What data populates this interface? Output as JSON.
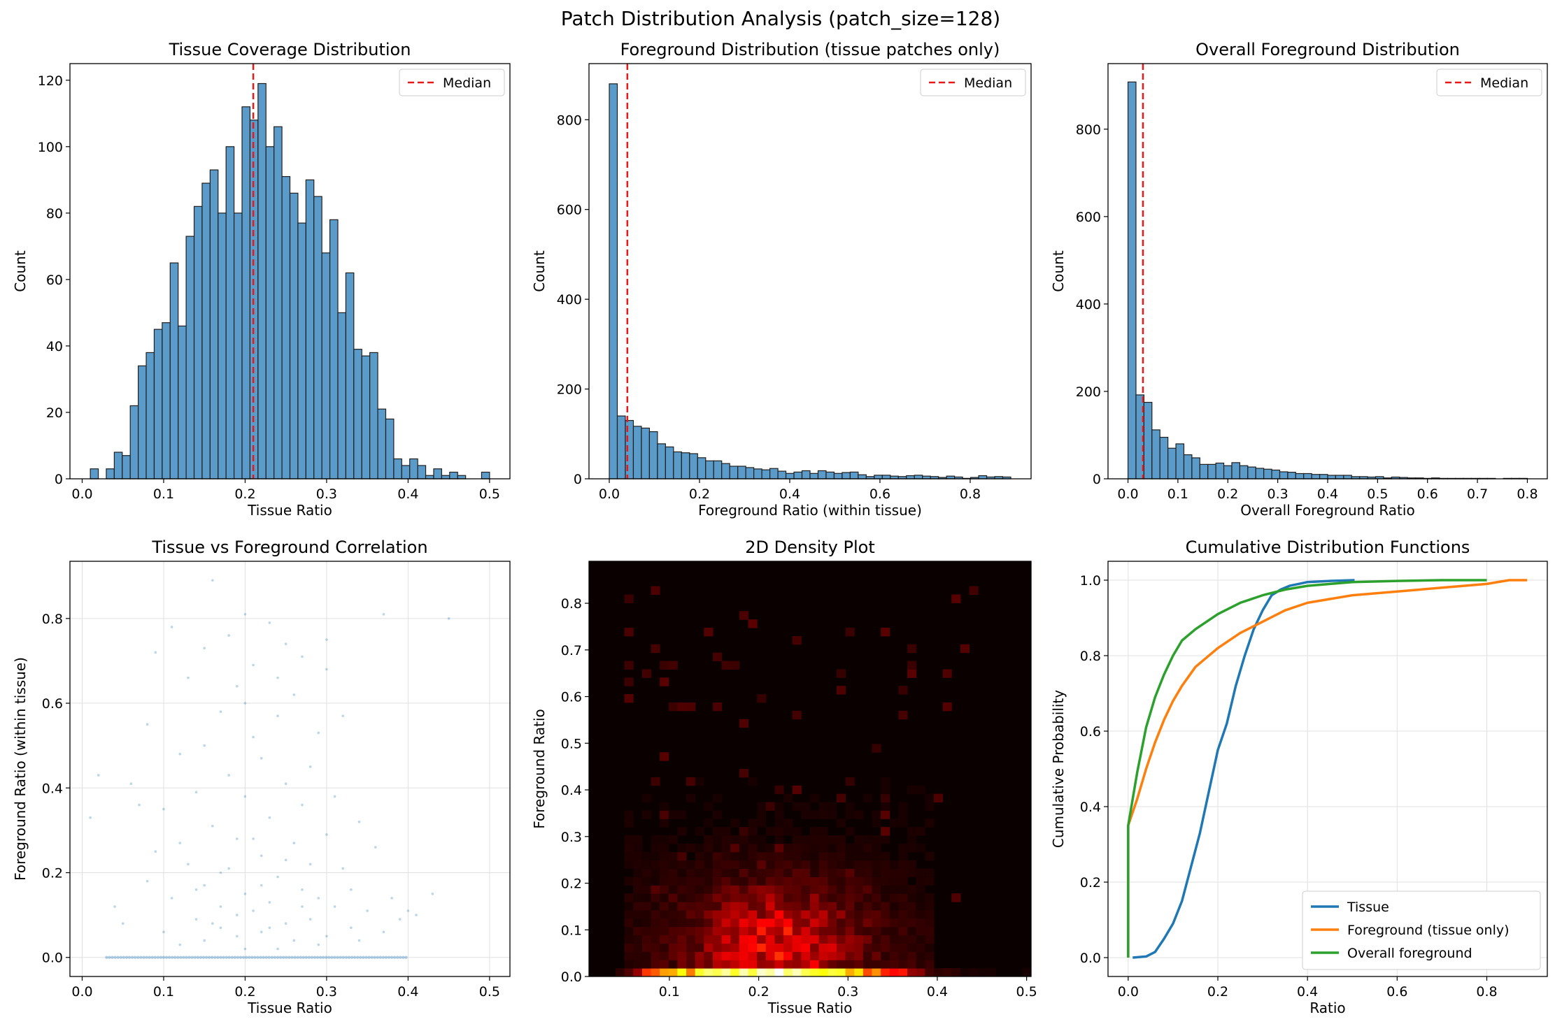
{
  "figure": {
    "title": "Patch Distribution Analysis (patch_size=128)"
  },
  "colors": {
    "bar_fill": "#5b9bc9",
    "bar_edge": "#1f1f1f",
    "median": "#e8191b",
    "tissue": "#1f77b4",
    "foreground": "#ff7f0e",
    "overall": "#2ca02c",
    "grid": "#e0e0e0"
  },
  "chart_data": [
    {
      "type": "bar",
      "title": "Tissue Coverage Distribution",
      "xlabel": "Tissue Ratio",
      "ylabel": "Count",
      "xlim": [
        -0.015,
        0.525
      ],
      "ylim": [
        0,
        125
      ],
      "xticks": [
        0.0,
        0.1,
        0.2,
        0.3,
        0.4,
        0.5
      ],
      "xtick_labels": [
        "0.0",
        "0.1",
        "0.2",
        "0.3",
        "0.4",
        "0.5"
      ],
      "yticks": [
        0,
        20,
        40,
        60,
        80,
        100,
        120
      ],
      "ytick_labels": [
        "0",
        "20",
        "40",
        "60",
        "80",
        "100",
        "120"
      ],
      "bin_start": 0.01,
      "bin_width": 0.0098,
      "values": [
        3,
        0,
        3,
        8,
        7,
        22,
        34,
        38,
        45,
        47,
        65,
        46,
        73,
        82,
        89,
        93,
        80,
        100,
        80,
        112,
        108,
        119,
        100,
        106,
        91,
        86,
        77,
        90,
        85,
        68,
        78,
        50,
        62,
        39,
        37,
        38,
        21,
        18,
        6,
        4,
        6,
        4,
        1,
        3,
        1,
        2,
        1,
        0,
        0,
        2
      ],
      "median": 0.21,
      "legend": {
        "entries": [
          "Median"
        ],
        "position": "upper right"
      }
    },
    {
      "type": "bar",
      "title": "Foreground Distribution (tissue patches only)",
      "xlabel": "Foreground Ratio (within tissue)",
      "ylabel": "Count",
      "xlim": [
        -0.045,
        0.935
      ],
      "ylim": [
        0,
        925
      ],
      "xticks": [
        0.0,
        0.2,
        0.4,
        0.6,
        0.8
      ],
      "xtick_labels": [
        "0.0",
        "0.2",
        "0.4",
        "0.6",
        "0.8"
      ],
      "yticks": [
        0,
        200,
        400,
        600,
        800
      ],
      "ytick_labels": [
        "0",
        "200",
        "400",
        "600",
        "800"
      ],
      "bin_start": 0.0,
      "bin_width": 0.0178,
      "values": [
        880,
        140,
        130,
        117,
        113,
        105,
        78,
        71,
        60,
        58,
        56,
        47,
        40,
        40,
        34,
        28,
        28,
        25,
        22,
        20,
        23,
        17,
        12,
        15,
        18,
        12,
        18,
        15,
        12,
        14,
        15,
        9,
        5,
        8,
        8,
        6,
        5,
        7,
        8,
        6,
        5,
        3,
        6,
        4,
        1,
        3,
        7,
        4,
        5,
        4
      ],
      "median": 0.04,
      "legend": {
        "entries": [
          "Median"
        ],
        "position": "upper right"
      }
    },
    {
      "type": "bar",
      "title": "Overall Foreground Distribution",
      "xlabel": "Overall Foreground Ratio",
      "ylabel": "Count",
      "xlim": [
        -0.04,
        0.84
      ],
      "ylim": [
        0,
        950
      ],
      "xticks": [
        0.0,
        0.1,
        0.2,
        0.3,
        0.4,
        0.5,
        0.6,
        0.7,
        0.8
      ],
      "xtick_labels": [
        "0.0",
        "0.1",
        "0.2",
        "0.3",
        "0.4",
        "0.5",
        "0.6",
        "0.7",
        "0.8"
      ],
      "yticks": [
        0,
        200,
        400,
        600,
        800
      ],
      "ytick_labels": [
        "0",
        "200",
        "400",
        "600",
        "800"
      ],
      "bin_start": 0.0,
      "bin_width": 0.016,
      "values": [
        908,
        192,
        175,
        112,
        95,
        70,
        80,
        55,
        48,
        33,
        33,
        36,
        30,
        37,
        30,
        27,
        24,
        22,
        20,
        16,
        15,
        12,
        12,
        10,
        10,
        8,
        8,
        8,
        5,
        5,
        4,
        5,
        2,
        4,
        3,
        2,
        2,
        1,
        2,
        1,
        1,
        1,
        1,
        1,
        1,
        1,
        0,
        1,
        1,
        1
      ],
      "median": 0.03,
      "legend": {
        "entries": [
          "Median"
        ],
        "position": "upper right"
      }
    },
    {
      "type": "scatter",
      "title": "Tissue vs Foreground Correlation",
      "xlabel": "Tissue Ratio",
      "ylabel": "Foreground Ratio (within tissue)",
      "xlim": [
        -0.015,
        0.525
      ],
      "ylim": [
        -0.045,
        0.935
      ],
      "xticks": [
        0.0,
        0.1,
        0.2,
        0.3,
        0.4,
        0.5
      ],
      "xtick_labels": [
        "0.0",
        "0.1",
        "0.2",
        "0.3",
        "0.4",
        "0.5"
      ],
      "yticks": [
        0.0,
        0.2,
        0.4,
        0.6,
        0.8
      ],
      "ytick_labels": [
        "0.0",
        "0.2",
        "0.4",
        "0.6",
        "0.8"
      ],
      "grid": true,
      "points": [
        [
          0.01,
          0.33
        ],
        [
          0.02,
          0.43
        ],
        [
          0.04,
          0.12
        ],
        [
          0.05,
          0.08
        ],
        [
          0.06,
          0.41
        ],
        [
          0.07,
          0.36
        ],
        [
          0.08,
          0.55
        ],
        [
          0.08,
          0.18
        ],
        [
          0.09,
          0.25
        ],
        [
          0.09,
          0.72
        ],
        [
          0.1,
          0.06
        ],
        [
          0.1,
          0.35
        ],
        [
          0.11,
          0.14
        ],
        [
          0.11,
          0.78
        ],
        [
          0.12,
          0.48
        ],
        [
          0.12,
          0.03
        ],
        [
          0.13,
          0.22
        ],
        [
          0.13,
          0.66
        ],
        [
          0.14,
          0.09
        ],
        [
          0.14,
          0.39
        ],
        [
          0.15,
          0.73
        ],
        [
          0.15,
          0.17
        ],
        [
          0.15,
          0.04
        ],
        [
          0.16,
          0.31
        ],
        [
          0.16,
          0.89
        ],
        [
          0.17,
          0.12
        ],
        [
          0.17,
          0.58
        ],
        [
          0.17,
          0.07
        ],
        [
          0.18,
          0.43
        ],
        [
          0.18,
          0.21
        ],
        [
          0.18,
          0.76
        ],
        [
          0.19,
          0.05
        ],
        [
          0.19,
          0.28
        ],
        [
          0.19,
          0.64
        ],
        [
          0.2,
          0.15
        ],
        [
          0.2,
          0.81
        ],
        [
          0.2,
          0.38
        ],
        [
          0.2,
          0.02
        ],
        [
          0.21,
          0.52
        ],
        [
          0.21,
          0.11
        ],
        [
          0.21,
          0.69
        ],
        [
          0.22,
          0.24
        ],
        [
          0.22,
          0.06
        ],
        [
          0.22,
          0.47
        ],
        [
          0.23,
          0.79
        ],
        [
          0.23,
          0.13
        ],
        [
          0.23,
          0.33
        ],
        [
          0.24,
          0.02
        ],
        [
          0.24,
          0.57
        ],
        [
          0.24,
          0.19
        ],
        [
          0.25,
          0.41
        ],
        [
          0.25,
          0.08
        ],
        [
          0.25,
          0.74
        ],
        [
          0.26,
          0.27
        ],
        [
          0.26,
          0.04
        ],
        [
          0.26,
          0.62
        ],
        [
          0.27,
          0.16
        ],
        [
          0.27,
          0.36
        ],
        [
          0.27,
          0.71
        ],
        [
          0.28,
          0.09
        ],
        [
          0.28,
          0.45
        ],
        [
          0.28,
          0.22
        ],
        [
          0.29,
          0.03
        ],
        [
          0.29,
          0.53
        ],
        [
          0.29,
          0.14
        ],
        [
          0.3,
          0.68
        ],
        [
          0.3,
          0.29
        ],
        [
          0.3,
          0.05
        ],
        [
          0.31,
          0.38
        ],
        [
          0.31,
          0.12
        ],
        [
          0.32,
          0.21
        ],
        [
          0.32,
          0.57
        ],
        [
          0.33,
          0.07
        ],
        [
          0.33,
          0.16
        ],
        [
          0.34,
          0.32
        ],
        [
          0.34,
          0.04
        ],
        [
          0.35,
          0.11
        ],
        [
          0.36,
          0.26
        ],
        [
          0.37,
          0.81
        ],
        [
          0.37,
          0.06
        ],
        [
          0.38,
          0.14
        ],
        [
          0.39,
          0.09
        ],
        [
          0.4,
          0.11
        ],
        [
          0.41,
          0.1
        ],
        [
          0.43,
          0.15
        ],
        [
          0.45,
          0.8
        ],
        [
          0.3,
          0.75
        ],
        [
          0.2,
          0.6
        ],
        [
          0.15,
          0.5
        ],
        [
          0.24,
          0.66
        ],
        [
          0.12,
          0.27
        ],
        [
          0.17,
          0.2
        ],
        [
          0.22,
          0.17
        ],
        [
          0.27,
          0.12
        ],
        [
          0.19,
          0.1
        ],
        [
          0.14,
          0.16
        ],
        [
          0.25,
          0.23
        ],
        [
          0.21,
          0.28
        ],
        [
          0.16,
          0.08
        ],
        [
          0.23,
          0.07
        ]
      ],
      "zero_band": [
        0.03,
        0.4
      ]
    },
    {
      "type": "heatmap",
      "title": "2D Density Plot",
      "xlabel": "Tissue Ratio",
      "ylabel": "Foreground Ratio",
      "xlim": [
        0.01,
        0.505
      ],
      "ylim": [
        0,
        0.89
      ],
      "xticks": [
        0.1,
        0.2,
        0.3,
        0.4,
        0.5
      ],
      "xtick_labels": [
        "0.1",
        "0.2",
        "0.3",
        "0.4",
        "0.5"
      ],
      "yticks": [
        0.0,
        0.1,
        0.2,
        0.3,
        0.4,
        0.5,
        0.6,
        0.7,
        0.8
      ],
      "ytick_labels": [
        "0.0",
        "0.1",
        "0.2",
        "0.3",
        "0.4",
        "0.5",
        "0.6",
        "0.7",
        "0.8"
      ],
      "bins": [
        50,
        50
      ],
      "colormap": "hot",
      "bottom_row_values": [
        0.0,
        0.0,
        0.0,
        0.05,
        0.1,
        0.2,
        0.45,
        0.5,
        0.6,
        0.62,
        0.75,
        0.55,
        0.78,
        0.86,
        0.82,
        0.9,
        0.78,
        0.92,
        0.8,
        0.95,
        0.9,
        1.0,
        0.85,
        0.93,
        0.82,
        0.78,
        0.75,
        0.8,
        0.78,
        0.62,
        0.7,
        0.48,
        0.58,
        0.42,
        0.38,
        0.4,
        0.2,
        0.18,
        0.08,
        0.05,
        0.06,
        0.05,
        0.02,
        0.03,
        0.02,
        0.02,
        0.01,
        0.0,
        0.0,
        0.02
      ],
      "hot_region": {
        "x": [
          0.06,
          0.34
        ],
        "y": [
          0.02,
          0.22
        ],
        "peak_x": 0.22,
        "peak_y": 0.07
      }
    },
    {
      "type": "line",
      "title": "Cumulative Distribution Functions",
      "xlabel": "Ratio",
      "ylabel": "Cumulative Probability",
      "xlim": [
        -0.045,
        0.935
      ],
      "ylim": [
        -0.05,
        1.05
      ],
      "xticks": [
        0.0,
        0.2,
        0.4,
        0.6,
        0.8
      ],
      "xtick_labels": [
        "0.0",
        "0.2",
        "0.4",
        "0.6",
        "0.8"
      ],
      "yticks": [
        0.0,
        0.2,
        0.4,
        0.6,
        0.8,
        1.0
      ],
      "ytick_labels": [
        "0.0",
        "0.2",
        "0.4",
        "0.6",
        "0.8",
        "1.0"
      ],
      "grid": true,
      "legend": {
        "position": "lower right"
      },
      "series": [
        {
          "name": "Tissue",
          "color": "#1f77b4",
          "x": [
            0.01,
            0.04,
            0.06,
            0.08,
            0.1,
            0.12,
            0.14,
            0.16,
            0.18,
            0.2,
            0.22,
            0.24,
            0.26,
            0.28,
            0.3,
            0.32,
            0.34,
            0.36,
            0.38,
            0.4,
            0.45,
            0.505
          ],
          "y": [
            0.0,
            0.003,
            0.015,
            0.05,
            0.09,
            0.15,
            0.24,
            0.33,
            0.44,
            0.55,
            0.62,
            0.72,
            0.8,
            0.87,
            0.92,
            0.96,
            0.975,
            0.985,
            0.99,
            0.995,
            0.998,
            1.0
          ]
        },
        {
          "name": "Foreground (tissue only)",
          "color": "#ff7f0e",
          "x": [
            0.0,
            0.0,
            0.02,
            0.04,
            0.06,
            0.08,
            0.1,
            0.12,
            0.15,
            0.2,
            0.25,
            0.3,
            0.35,
            0.4,
            0.5,
            0.6,
            0.7,
            0.8,
            0.85,
            0.89
          ],
          "y": [
            0.0,
            0.35,
            0.42,
            0.5,
            0.57,
            0.63,
            0.68,
            0.72,
            0.77,
            0.82,
            0.86,
            0.89,
            0.92,
            0.94,
            0.96,
            0.97,
            0.98,
            0.99,
            1.0,
            1.0
          ]
        },
        {
          "name": "Overall foreground",
          "color": "#2ca02c",
          "x": [
            0.0,
            0.0,
            0.01,
            0.02,
            0.03,
            0.04,
            0.06,
            0.08,
            0.1,
            0.12,
            0.15,
            0.2,
            0.25,
            0.3,
            0.35,
            0.4,
            0.5,
            0.6,
            0.7,
            0.8
          ],
          "y": [
            0.0,
            0.35,
            0.42,
            0.49,
            0.55,
            0.61,
            0.69,
            0.75,
            0.8,
            0.84,
            0.87,
            0.91,
            0.94,
            0.96,
            0.975,
            0.985,
            0.995,
            0.998,
            1.0,
            1.0
          ]
        }
      ]
    }
  ]
}
